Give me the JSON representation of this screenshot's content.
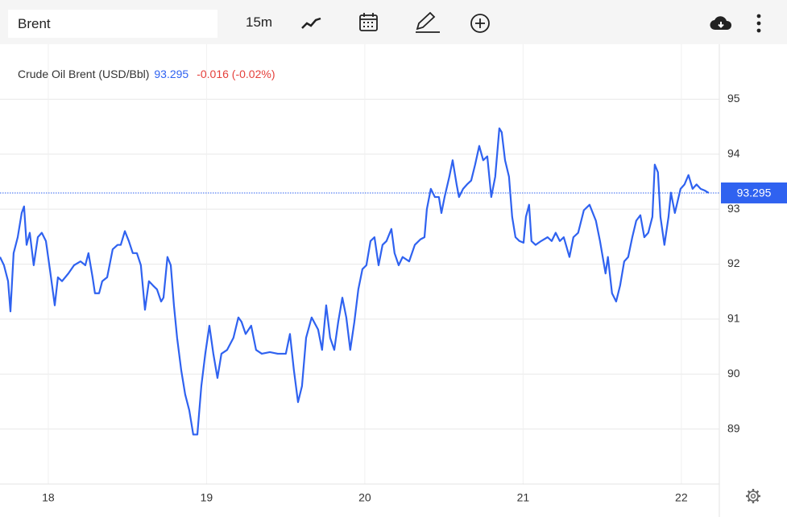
{
  "toolbar": {
    "search": "Brent",
    "interval": "15m"
  },
  "chart_data": {
    "type": "line",
    "title": "Crude Oil Brent (USD/Bbl)",
    "last_price": 93.295,
    "change": "-0.016 (-0.02%)",
    "color": "#2f62f0",
    "grid": true,
    "xlim": [
      17.695,
      22.24
    ],
    "ylim": [
      88,
      96
    ],
    "xticks": [
      18,
      19,
      20,
      21,
      22
    ],
    "yticks": [
      89,
      90,
      91,
      92,
      93,
      94,
      95
    ],
    "x": [
      17.695,
      17.72,
      17.746,
      17.761,
      17.781,
      17.807,
      17.832,
      17.847,
      17.863,
      17.883,
      17.908,
      17.934,
      17.959,
      17.985,
      18.01,
      18.041,
      18.061,
      18.087,
      18.127,
      18.163,
      18.204,
      18.234,
      18.254,
      18.28,
      18.295,
      18.321,
      18.341,
      18.372,
      18.407,
      18.438,
      18.458,
      18.484,
      18.509,
      18.534,
      18.56,
      18.585,
      18.611,
      18.636,
      18.662,
      18.687,
      18.713,
      18.728,
      18.753,
      18.774,
      18.794,
      18.814,
      18.84,
      18.865,
      18.891,
      18.916,
      18.942,
      18.967,
      18.992,
      19.018,
      19.043,
      19.069,
      19.094,
      19.13,
      19.17,
      19.201,
      19.221,
      19.247,
      19.282,
      19.313,
      19.349,
      19.4,
      19.45,
      19.501,
      19.527,
      19.552,
      19.578,
      19.603,
      19.629,
      19.664,
      19.705,
      19.73,
      19.756,
      19.781,
      19.807,
      19.832,
      19.858,
      19.883,
      19.908,
      19.934,
      19.959,
      19.985,
      20.01,
      20.036,
      20.061,
      20.087,
      20.112,
      20.137,
      20.168,
      20.188,
      20.214,
      20.239,
      20.28,
      20.316,
      20.351,
      20.377,
      20.392,
      20.417,
      20.443,
      20.468,
      20.484,
      20.504,
      20.534,
      20.555,
      20.58,
      20.595,
      20.621,
      20.646,
      20.672,
      20.697,
      20.723,
      20.748,
      20.774,
      20.799,
      20.824,
      20.85,
      20.865,
      20.886,
      20.911,
      20.931,
      20.952,
      20.977,
      21.003,
      21.018,
      21.038,
      21.053,
      21.079,
      21.114,
      21.155,
      21.181,
      21.206,
      21.232,
      21.257,
      21.293,
      21.318,
      21.348,
      21.384,
      21.42,
      21.46,
      21.486,
      21.521,
      21.536,
      21.562,
      21.588,
      21.613,
      21.639,
      21.664,
      21.69,
      21.715,
      21.741,
      21.766,
      21.791,
      21.817,
      21.832,
      21.852,
      21.868,
      21.893,
      21.919,
      21.934,
      21.959,
      21.995,
      22.02,
      22.045,
      22.071,
      22.096,
      22.122,
      22.147,
      22.173
    ],
    "values": [
      92.13,
      91.98,
      91.69,
      91.14,
      92.2,
      92.49,
      92.93,
      93.05,
      92.35,
      92.57,
      91.98,
      92.49,
      92.57,
      92.42,
      91.91,
      91.25,
      91.76,
      91.69,
      91.83,
      91.98,
      92.05,
      91.98,
      92.2,
      91.76,
      91.47,
      91.47,
      91.69,
      91.76,
      92.27,
      92.35,
      92.35,
      92.6,
      92.42,
      92.2,
      92.2,
      91.98,
      91.17,
      91.69,
      91.61,
      91.54,
      91.32,
      91.39,
      92.13,
      91.98,
      91.25,
      90.66,
      90.07,
      89.63,
      89.34,
      88.9,
      88.9,
      89.78,
      90.37,
      90.88,
      90.37,
      89.93,
      90.37,
      90.44,
      90.66,
      91.03,
      90.95,
      90.73,
      90.88,
      90.44,
      90.37,
      90.4,
      90.37,
      90.37,
      90.73,
      90.07,
      89.49,
      89.78,
      90.66,
      91.03,
      90.81,
      90.44,
      91.25,
      90.66,
      90.44,
      90.95,
      91.39,
      91.03,
      90.44,
      90.95,
      91.54,
      91.91,
      91.98,
      92.42,
      92.49,
      91.98,
      92.35,
      92.42,
      92.64,
      92.2,
      91.98,
      92.13,
      92.05,
      92.35,
      92.45,
      92.49,
      93.0,
      93.37,
      93.22,
      93.22,
      92.93,
      93.22,
      93.59,
      93.89,
      93.45,
      93.22,
      93.37,
      93.45,
      93.52,
      93.81,
      94.15,
      93.89,
      93.96,
      93.22,
      93.59,
      94.47,
      94.4,
      93.89,
      93.59,
      92.86,
      92.49,
      92.42,
      92.39,
      92.86,
      93.08,
      92.42,
      92.35,
      92.42,
      92.49,
      92.42,
      92.57,
      92.42,
      92.49,
      92.13,
      92.49,
      92.57,
      92.98,
      93.08,
      92.79,
      92.42,
      91.83,
      92.13,
      91.47,
      91.32,
      91.61,
      92.05,
      92.13,
      92.49,
      92.79,
      92.89,
      92.49,
      92.57,
      92.86,
      93.81,
      93.67,
      92.86,
      92.35,
      92.86,
      93.3,
      92.93,
      93.37,
      93.45,
      93.62,
      93.37,
      93.45,
      93.37,
      93.34,
      93.295
    ]
  }
}
